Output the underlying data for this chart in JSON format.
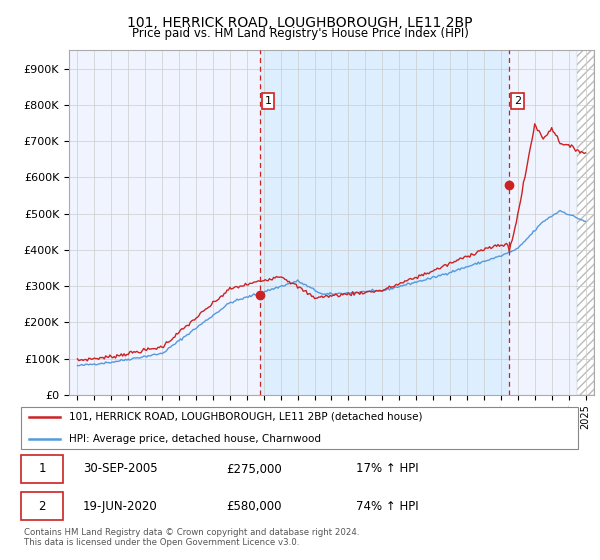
{
  "title": "101, HERRICK ROAD, LOUGHBOROUGH, LE11 2BP",
  "subtitle": "Price paid vs. HM Land Registry's House Price Index (HPI)",
  "ylabel_ticks": [
    "£0",
    "£100K",
    "£200K",
    "£300K",
    "£400K",
    "£500K",
    "£600K",
    "£700K",
    "£800K",
    "£900K"
  ],
  "ytick_values": [
    0,
    100000,
    200000,
    300000,
    400000,
    500000,
    600000,
    700000,
    800000,
    900000
  ],
  "ylim": [
    0,
    950000
  ],
  "xlim_start": 1994.5,
  "xlim_end": 2025.5,
  "hpi_color": "#5599dd",
  "sale_color": "#cc2222",
  "vline_color": "#cc2222",
  "shade_color": "#ddeeff",
  "marker1_year": 2005.75,
  "marker2_year": 2020.46,
  "sale1_price": 275000,
  "sale2_price": 580000,
  "legend_entries": [
    "101, HERRICK ROAD, LOUGHBOROUGH, LE11 2BP (detached house)",
    "HPI: Average price, detached house, Charnwood"
  ],
  "table_rows": [
    [
      "1",
      "30-SEP-2005",
      "£275,000",
      "17% ↑ HPI"
    ],
    [
      "2",
      "19-JUN-2020",
      "£580,000",
      "74% ↑ HPI"
    ]
  ],
  "footer": "Contains HM Land Registry data © Crown copyright and database right 2024.\nThis data is licensed under the Open Government Licence v3.0.",
  "background_color": "#ffffff",
  "grid_color": "#cccccc"
}
